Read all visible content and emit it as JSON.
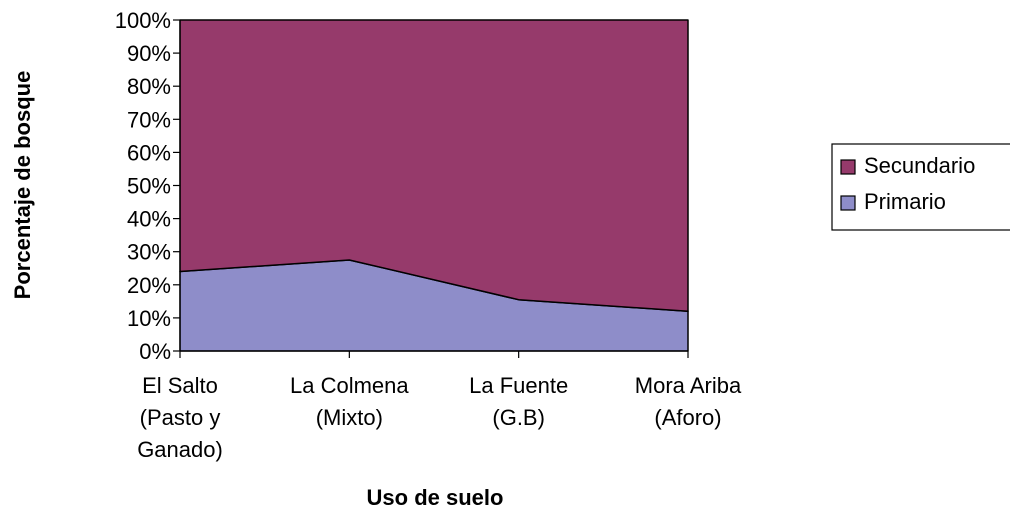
{
  "chart_data": {
    "type": "area",
    "stacked": "percent",
    "categories": [
      [
        "El Salto",
        "(Pasto y",
        "Ganado)"
      ],
      [
        "La Colmena",
        "(Mixto)"
      ],
      [
        "La Fuente",
        "(G.B)"
      ],
      [
        "Mora Ariba",
        "(Aforo)"
      ]
    ],
    "series": [
      {
        "name": "Primario",
        "values": [
          24,
          27.5,
          15.5,
          12
        ],
        "color": "#8E8DC9"
      },
      {
        "name": "Secundario",
        "values": [
          76,
          72.5,
          84.5,
          88
        ],
        "color": "#963A6B"
      }
    ],
    "ylim": [
      0,
      100
    ],
    "yticks": [
      "0%",
      "10%",
      "20%",
      "30%",
      "40%",
      "50%",
      "60%",
      "70%",
      "80%",
      "90%",
      "100%"
    ],
    "xlabel": "Uso de suelo",
    "ylabel": "Porcentaje de bosque",
    "grid": false,
    "legend": {
      "position": "right",
      "order": [
        "Secundario",
        "Primario"
      ]
    }
  }
}
